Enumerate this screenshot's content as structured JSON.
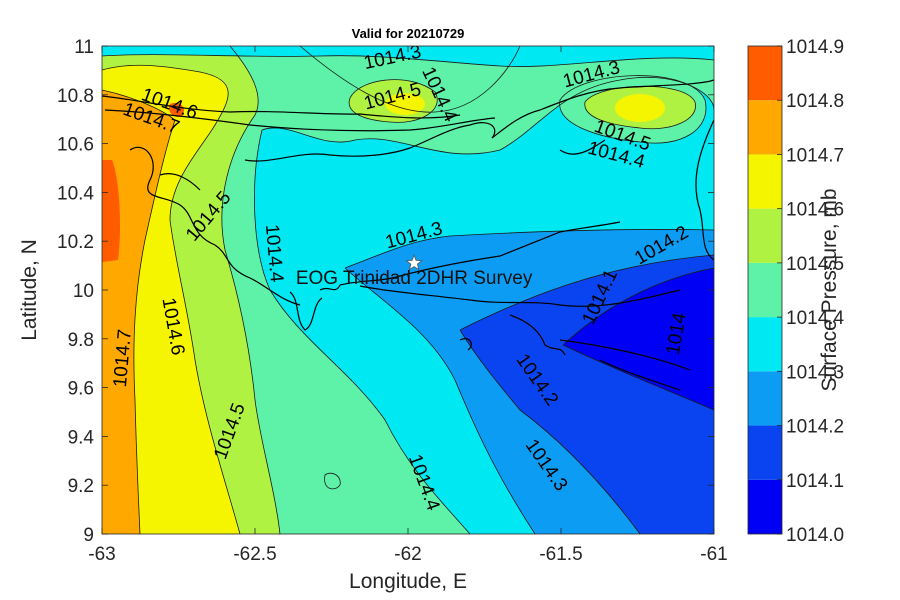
{
  "chart_data": {
    "type": "heatmap",
    "subtype": "filled-contour-map",
    "title": "Valid for 20210729",
    "xlabel": "Longitude, E",
    "ylabel": "Latitude, N",
    "xlim": [
      -63,
      -61
    ],
    "ylim": [
      9,
      11
    ],
    "xticks": [
      -63,
      -62.5,
      -62,
      -61.5,
      -61
    ],
    "xtick_labels": [
      "-63",
      "-62.5",
      "-62",
      "-61.5",
      "-61"
    ],
    "yticks": [
      9,
      9.2,
      9.4,
      9.6,
      9.8,
      10,
      10.2,
      10.4,
      10.6,
      10.8,
      11
    ],
    "ytick_labels": [
      "9",
      "9.2",
      "9.4",
      "9.6",
      "9.8",
      "10",
      "10.2",
      "10.4",
      "10.6",
      "10.8",
      "11"
    ],
    "colorbar": {
      "label": "Surface Pressure, mb",
      "levels": [
        1014.0,
        1014.1,
        1014.2,
        1014.3,
        1014.4,
        1014.5,
        1014.6,
        1014.7,
        1014.8,
        1014.9
      ],
      "tick_labels": [
        "1014.0",
        "1014.1",
        "1014.2",
        "1014.3",
        "1014.4",
        "1014.5",
        "1014.6",
        "1014.7",
        "1014.8",
        "1014.9"
      ],
      "colors": [
        "#0000f5",
        "#0a44f0",
        "#0d9cf3",
        "#00e8f2",
        "#5df2a8",
        "#b0f242",
        "#f5f500",
        "#ffa800",
        "#ff5c00"
      ]
    },
    "contour_labels": [
      {
        "text": "1014.3",
        "x": -61.98,
        "y": 10.22
      },
      {
        "text": "1014.4",
        "x": -61.95,
        "y": 9.21
      },
      {
        "text": "1014.5",
        "x": -62.58,
        "y": 9.42
      },
      {
        "text": "1014.6",
        "x": -62.77,
        "y": 9.85
      },
      {
        "text": "1014.7",
        "x": -62.93,
        "y": 9.72
      },
      {
        "text": "1014.2",
        "x": -61.58,
        "y": 9.63
      },
      {
        "text": "1014.3",
        "x": -61.55,
        "y": 9.28
      },
      {
        "text": "1014.1",
        "x": -61.37,
        "y": 9.97
      },
      {
        "text": "1014",
        "x": -61.12,
        "y": 9.82
      },
      {
        "text": "1014.2",
        "x": -61.17,
        "y": 10.18
      },
      {
        "text": "1014.4",
        "x": -62.44,
        "y": 10.15
      },
      {
        "text": "1014.5",
        "x": -62.65,
        "y": 10.3
      },
      {
        "text": "1014.6",
        "x": -62.78,
        "y": 10.76
      },
      {
        "text": "1014.7",
        "x": -62.84,
        "y": 10.7
      },
      {
        "text": "1014.3",
        "x": -62.05,
        "y": 10.95
      },
      {
        "text": "1014.5",
        "x": -62.05,
        "y": 10.79
      },
      {
        "text": "1014.4",
        "x": -61.9,
        "y": 10.8
      },
      {
        "text": "1014.3",
        "x": -61.4,
        "y": 10.88
      },
      {
        "text": "1014.5",
        "x": -61.3,
        "y": 10.63
      },
      {
        "text": "1014.4",
        "x": -61.32,
        "y": 10.55
      }
    ],
    "annotation": {
      "text": "EOG Trinidad 2DHR Survey",
      "marker": "star",
      "lon": -61.98,
      "lat": 10.11
    }
  }
}
